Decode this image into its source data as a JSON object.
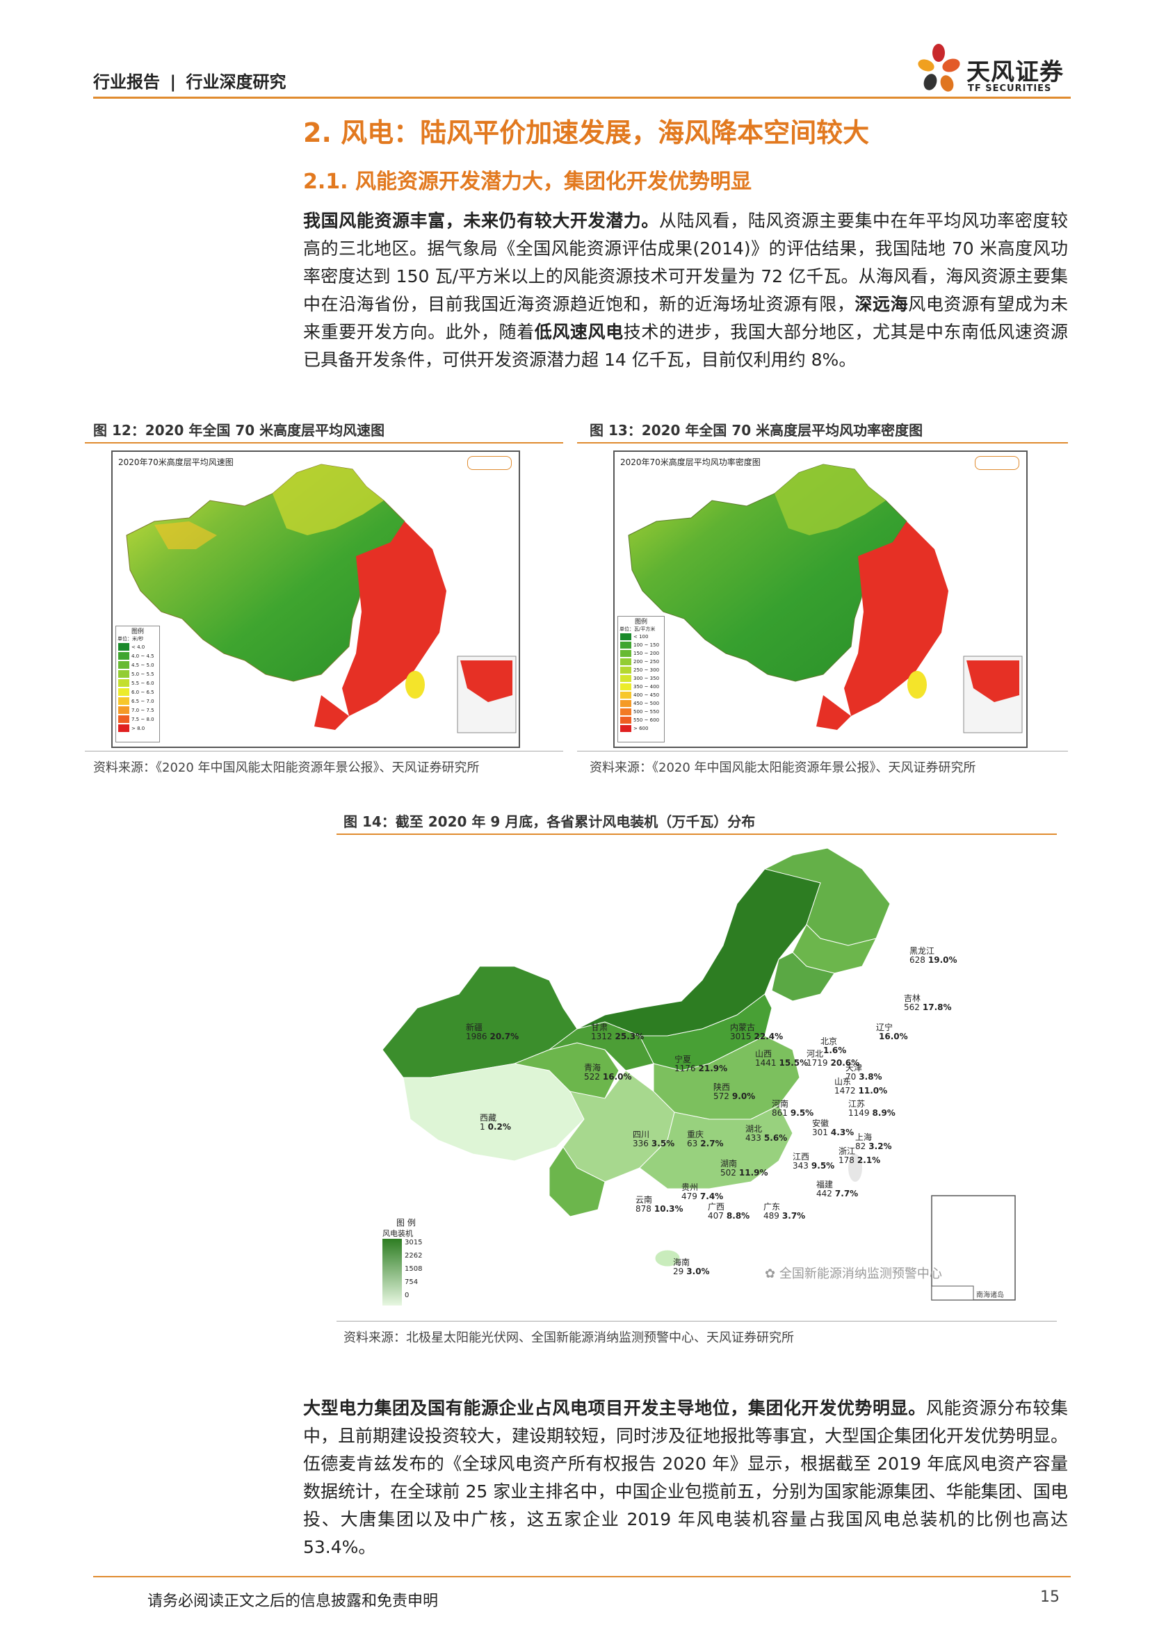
{
  "header": {
    "category": "行业报告",
    "separator": "|",
    "subcategory": "行业深度研究",
    "logo_cn": "天风证券",
    "logo_en": "TF SECURITIES"
  },
  "section": {
    "h1": "2. 风电：陆风平价加速发展，海风降本空间较大",
    "h2": "2.1. 风能资源开发潜力大，集团化开发优势明显"
  },
  "para1": {
    "bold1": "我国风能资源丰富，未来仍有较大开发潜力。",
    "text1": "从陆风看，陆风资源主要集中在年平均风功率密度较高的三北地区。据气象局《全国风能资源评估成果(2014)》的评估结果，我国陆地 70 米高度风功率密度达到 150 瓦/平方米以上的风能资源技术可开发量为 72 亿千瓦。从海风看，海风资源主要集中在沿海省份，目前我国近海资源趋近饱和，新的近海场址资源有限，",
    "bold2": "深远海",
    "text2": "风电资源有望成为未来重要开发方向。此外，随着",
    "bold3": "低风速风电",
    "text3": "技术的进步，我国大部分地区，尤其是中东南低风速资源已具备开发条件，可供开发资源潜力超 14 亿千瓦，目前仅利用约 8%。"
  },
  "fig12": {
    "title": "图 12：2020 年全国 70 米高度层平均风速图",
    "map_title": "2020年70米高度层平均风速图",
    "legend_title": "图例",
    "legend_unit": "单位：米/秒",
    "legend_items": [
      "< 4.0",
      "4.0 ~ 4.5",
      "4.5 ~ 5.0",
      "5.0 ~ 5.5",
      "5.5 ~ 6.0",
      "6.0 ~ 6.5",
      "6.5 ~ 7.0",
      "7.0 ~ 7.5",
      "7.5 ~ 8.0",
      "> 8.0"
    ],
    "legend_colors": [
      "#1a8a2a",
      "#3fa52f",
      "#67ba33",
      "#93cd33",
      "#c4df2e",
      "#ecec2a",
      "#f7c72a",
      "#f59a26",
      "#ef5e22",
      "#e02020"
    ],
    "source": "资料来源：《2020 年中国风能太阳能资源年景公报》、天风证券研究所"
  },
  "fig13": {
    "title": "图 13：2020 年全国 70 米高度层平均风功率密度图",
    "map_title": "2020年70米高度层平均风功率密度图",
    "legend_title": "图例",
    "legend_unit": "单位：瓦/平方米",
    "legend_items": [
      "< 100",
      "100 ~ 150",
      "150 ~ 200",
      "200 ~ 250",
      "250 ~ 300",
      "300 ~ 350",
      "350 ~ 400",
      "400 ~ 450",
      "450 ~ 500",
      "500 ~ 550",
      "550 ~ 600",
      "> 600"
    ],
    "legend_colors": [
      "#1a8a2a",
      "#3fa52f",
      "#67ba33",
      "#93cd33",
      "#b4d830",
      "#d4e52d",
      "#ecec2a",
      "#f7c72a",
      "#f59a26",
      "#f27a24",
      "#ef5e22",
      "#e02020"
    ],
    "source": "资料来源：《2020 年中国风能太阳能资源年景公报》、天风证券研究所"
  },
  "fig14": {
    "title": "图 14：截至 2020 年 9 月底，各省累计风电装机（万千瓦）分布",
    "legend_title": "图 例",
    "legend_subtitle": "风电装机",
    "legend_ticks": [
      "3015",
      "2262",
      "1508",
      "754",
      "0"
    ],
    "watermark": "全国新能源消纳监测预警中心",
    "inset_label": "南海诸岛",
    "source": "资料来源：北极星太阳能光伏网、全国新能源消纳监测预警中心、天风证券研究所",
    "provinces": [
      {
        "name": "新疆",
        "value": "1986",
        "pct": "20.7%"
      },
      {
        "name": "西藏",
        "value": "1",
        "pct": "0.2%"
      },
      {
        "name": "青海",
        "value": "522",
        "pct": "16.0%"
      },
      {
        "name": "甘肃",
        "value": "1312",
        "pct": "25.3%"
      },
      {
        "name": "内蒙古",
        "value": "3015",
        "pct": "22.4%"
      },
      {
        "name": "黑龙江",
        "value": "628",
        "pct": "19.0%"
      },
      {
        "name": "吉林",
        "value": "562",
        "pct": "17.8%"
      },
      {
        "name": "辽宁",
        "value": "",
        "pct": "16.0%"
      },
      {
        "name": "北京",
        "value": "",
        "pct": "1.6%"
      },
      {
        "name": "天津",
        "value": "70",
        "pct": "3.8%"
      },
      {
        "name": "河北",
        "value": "1719",
        "pct": "20.6%"
      },
      {
        "name": "山西",
        "value": "1441",
        "pct": "15.5%"
      },
      {
        "name": "宁夏",
        "value": "1176",
        "pct": "21.9%"
      },
      {
        "name": "陕西",
        "value": "572",
        "pct": "9.0%"
      },
      {
        "name": "山东",
        "value": "1472",
        "pct": "11.0%"
      },
      {
        "name": "河南",
        "value": "861",
        "pct": "9.5%"
      },
      {
        "name": "江苏",
        "value": "1149",
        "pct": "8.9%"
      },
      {
        "name": "安徽",
        "value": "301",
        "pct": "4.3%"
      },
      {
        "name": "上海",
        "value": "82",
        "pct": "3.2%"
      },
      {
        "name": "湖北",
        "value": "433",
        "pct": "5.6%"
      },
      {
        "name": "浙江",
        "value": "178",
        "pct": "2.1%"
      },
      {
        "name": "四川",
        "value": "336",
        "pct": "3.5%"
      },
      {
        "name": "重庆",
        "value": "63",
        "pct": "2.7%"
      },
      {
        "name": "湖南",
        "value": "502",
        "pct": "11.9%"
      },
      {
        "name": "江西",
        "value": "343",
        "pct": "9.5%"
      },
      {
        "name": "福建",
        "value": "442",
        "pct": "7.7%"
      },
      {
        "name": "贵州",
        "value": "479",
        "pct": "7.4%"
      },
      {
        "name": "云南",
        "value": "878",
        "pct": "10.3%"
      },
      {
        "name": "广西",
        "value": "407",
        "pct": "8.8%"
      },
      {
        "name": "广东",
        "value": "489",
        "pct": "3.7%"
      },
      {
        "name": "海南",
        "value": "29",
        "pct": "3.0%"
      }
    ]
  },
  "para2": {
    "bold1": "大型电力集团及国有能源企业占风电项目开发主导地位，集团化开发优势明显。",
    "text1": "风能资源分布较集中，且前期建设投资较大，建设期较短，同时涉及征地报批等事宜，大型国企集团化开发优势明显。伍德麦肯兹发布的《全球风电资产所有权报告 2020 年》显示，根据截至 2019 年底风电资产容量数据统计，在全球前 25 家业主排名中，中国企业包揽前五，分别为国家能源集团、华能集团、国电投、大唐集团以及中广核，这五家企业 2019 年风电装机容量占我国风电总装机的比例也高达 53.4%。"
  },
  "footer": {
    "disclaimer": "请务必阅读正文之后的信息披露和免责申明",
    "page": "15"
  }
}
